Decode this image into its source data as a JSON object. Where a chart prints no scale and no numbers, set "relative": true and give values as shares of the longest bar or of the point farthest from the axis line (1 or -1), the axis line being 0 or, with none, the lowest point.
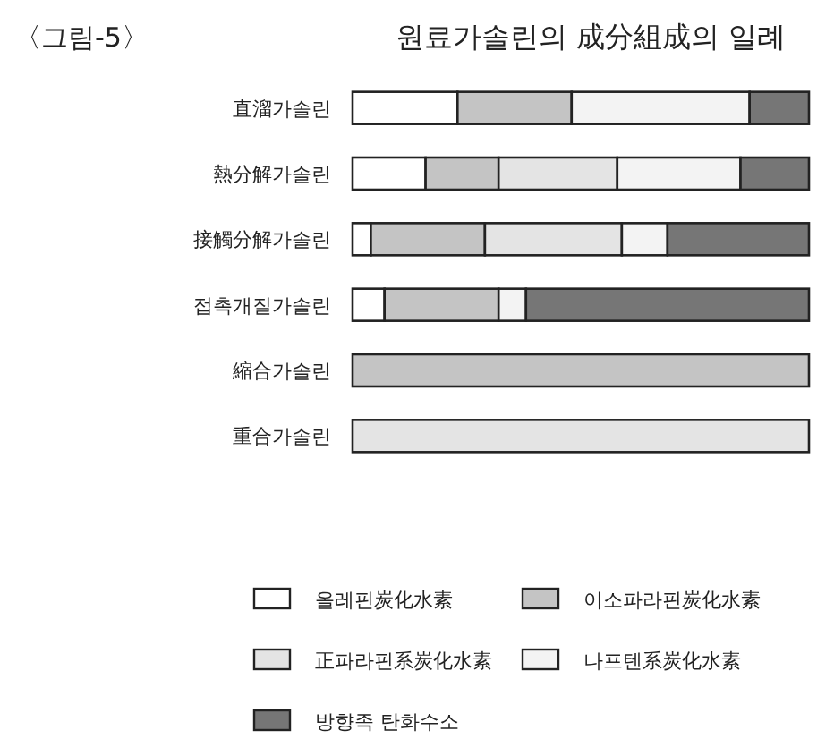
{
  "chart_data": {
    "type": "bar",
    "orientation": "horizontal",
    "stacked": true,
    "relative": true,
    "title": "원료가솔린의 成分組成의 일례",
    "annotations": [
      "〈그림-5〉"
    ],
    "categories": [
      "直溜가솔린",
      "熱分解가솔린",
      "接觸分解가솔린",
      "접촉개질가솔린",
      "縮合가솔린",
      "重合가솔린"
    ],
    "series": [
      {
        "name": "올레핀炭化水素",
        "color": "#ffffff",
        "values": [
          0.23,
          0.16,
          0.04,
          0.07,
          0,
          0
        ]
      },
      {
        "name": "이소파라핀炭化水素",
        "color": "#c4c4c4",
        "values": [
          0.25,
          0.16,
          0.25,
          0.25,
          1.0,
          0
        ]
      },
      {
        "name": "正파라핀系炭化水素",
        "color": "#e4e4e4",
        "values": [
          0,
          0.26,
          0.3,
          0,
          0,
          1.0
        ]
      },
      {
        "name": "나프텐系炭化水素",
        "color": "#f3f3f3",
        "values": [
          0.39,
          0.27,
          0.1,
          0.06,
          0,
          0
        ]
      },
      {
        "name": "방향족 탄화수소",
        "color": "#767676",
        "values": [
          0.13,
          0.15,
          0.31,
          0.62,
          0,
          0
        ]
      }
    ],
    "legend": "bottom"
  }
}
